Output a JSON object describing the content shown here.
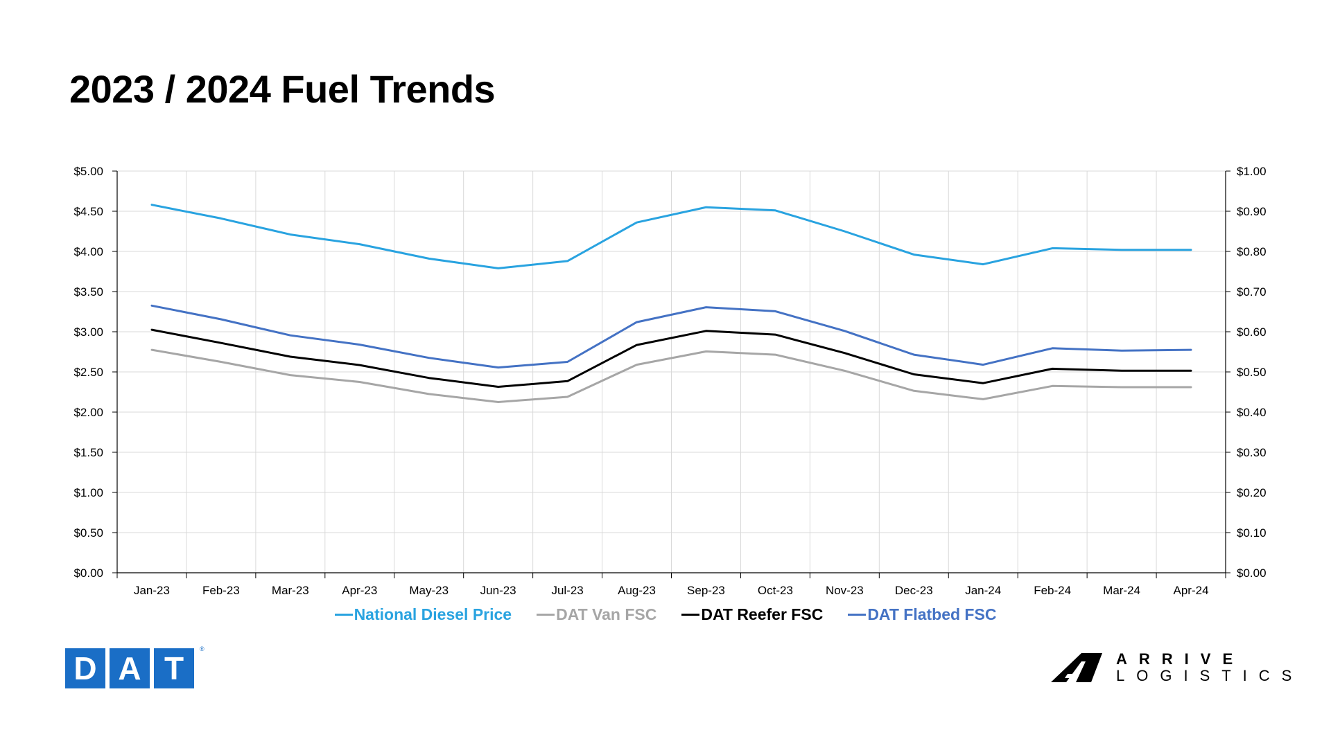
{
  "title": "2023 / 2024 Fuel Trends",
  "chart_data": {
    "type": "line",
    "categories": [
      "Jan-23",
      "Feb-23",
      "Mar-23",
      "Apr-23",
      "May-23",
      "Jun-23",
      "Jul-23",
      "Aug-23",
      "Sep-23",
      "Oct-23",
      "Nov-23",
      "Dec-23",
      "Jan-24",
      "Feb-24",
      "Mar-24",
      "Apr-24"
    ],
    "y_left": {
      "ylim": [
        0,
        5
      ],
      "ticks": [
        "$0.00",
        "$0.50",
        "$1.00",
        "$1.50",
        "$2.00",
        "$2.50",
        "$3.00",
        "$3.50",
        "$4.00",
        "$4.50",
        "$5.00"
      ]
    },
    "y_right": {
      "ylim": [
        0,
        1
      ],
      "ticks": [
        "$0.00",
        "$0.10",
        "$0.20",
        "$0.30",
        "$0.40",
        "$0.50",
        "$0.60",
        "$0.70",
        "$0.80",
        "$0.90",
        "$1.00"
      ]
    },
    "grid": true,
    "legend_position": "bottom",
    "series": [
      {
        "name": "National Diesel Price",
        "axis": "left",
        "color": "#29a3e0",
        "values": [
          4.58,
          4.41,
          4.21,
          4.09,
          3.91,
          3.79,
          3.88,
          4.36,
          4.55,
          4.51,
          4.25,
          3.96,
          3.84,
          4.04,
          4.02,
          4.02
        ]
      },
      {
        "name": "DAT Van FSC",
        "axis": "right",
        "color": "#a6a6a6",
        "values": [
          0.555,
          0.525,
          0.492,
          0.475,
          0.445,
          0.425,
          0.438,
          0.518,
          0.551,
          0.543,
          0.503,
          0.453,
          0.432,
          0.465,
          0.462,
          0.462
        ]
      },
      {
        "name": "DAT Reefer FSC",
        "axis": "right",
        "color": "#000000",
        "values": [
          0.605,
          0.572,
          0.538,
          0.517,
          0.485,
          0.463,
          0.477,
          0.567,
          0.602,
          0.593,
          0.547,
          0.494,
          0.472,
          0.508,
          0.503,
          0.503
        ]
      },
      {
        "name": "DAT Flatbed FSC",
        "axis": "right",
        "color": "#4472c4",
        "values": [
          0.665,
          0.631,
          0.591,
          0.568,
          0.535,
          0.511,
          0.525,
          0.624,
          0.661,
          0.651,
          0.602,
          0.543,
          0.518,
          0.559,
          0.553,
          0.555
        ]
      }
    ]
  },
  "logos": {
    "dat": {
      "letters": [
        "D",
        "A",
        "T"
      ],
      "registered": "®",
      "color": "#1a6ec6"
    },
    "arrive": {
      "line1": "ARRIVE",
      "line2": "LOGISTICS",
      "icon": "arrive-logistics-mark-icon"
    }
  }
}
